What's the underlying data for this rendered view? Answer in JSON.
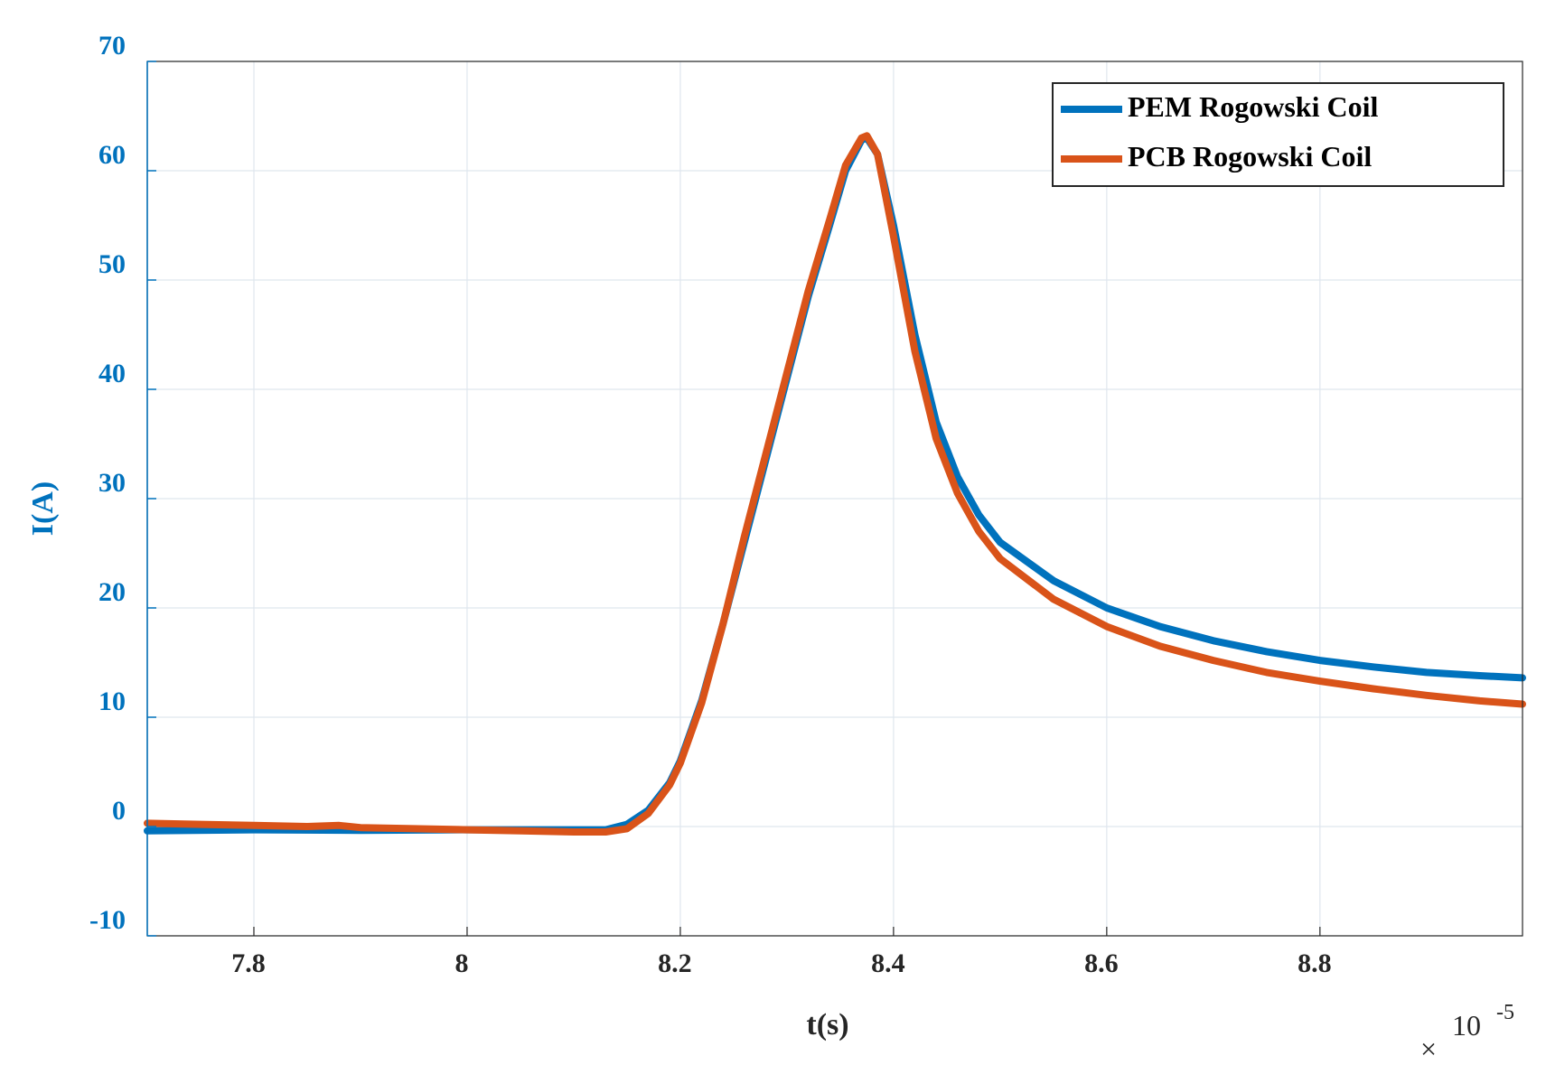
{
  "chart_data": {
    "type": "line",
    "xlabel": "t(s)",
    "ylabel": "I(A)",
    "x_exponent_base": "10",
    "x_exponent_power": "-5",
    "x_exponent_symbol": "×",
    "xlim": [
      7.7,
      8.99
    ],
    "ylim": [
      -10,
      70
    ],
    "x_ticks": [
      7.8,
      8.0,
      8.2,
      8.4,
      8.6,
      8.8
    ],
    "x_tick_labels": [
      "7.8",
      "8",
      "8.2",
      "8.4",
      "8.6",
      "8.8"
    ],
    "y_ticks": [
      -10,
      0,
      10,
      20,
      30,
      40,
      50,
      60,
      70
    ],
    "y_tick_labels": [
      "-10",
      "0",
      "10",
      "20",
      "30",
      "40",
      "50",
      "60",
      "70"
    ],
    "grid": true,
    "legend_position": "top-right",
    "series": [
      {
        "name": "PEM Rogowski Coil",
        "color": "#0072BD",
        "points": [
          [
            7.7,
            -0.4
          ],
          [
            7.8,
            -0.3
          ],
          [
            7.9,
            -0.35
          ],
          [
            8.0,
            -0.3
          ],
          [
            8.1,
            -0.3
          ],
          [
            8.13,
            -0.3
          ],
          [
            8.15,
            0.2
          ],
          [
            8.17,
            1.5
          ],
          [
            8.19,
            4.0
          ],
          [
            8.2,
            6.0
          ],
          [
            8.22,
            11.5
          ],
          [
            8.24,
            18.5
          ],
          [
            8.26,
            26.0
          ],
          [
            8.28,
            33.5
          ],
          [
            8.3,
            41.0
          ],
          [
            8.32,
            48.5
          ],
          [
            8.34,
            55.0
          ],
          [
            8.355,
            60.0
          ],
          [
            8.37,
            62.8
          ],
          [
            8.375,
            63.0
          ],
          [
            8.385,
            61.5
          ],
          [
            8.4,
            55.0
          ],
          [
            8.42,
            45.0
          ],
          [
            8.44,
            37.0
          ],
          [
            8.46,
            32.0
          ],
          [
            8.48,
            28.5
          ],
          [
            8.5,
            26.0
          ],
          [
            8.55,
            22.5
          ],
          [
            8.6,
            20.0
          ],
          [
            8.65,
            18.3
          ],
          [
            8.7,
            17.0
          ],
          [
            8.75,
            16.0
          ],
          [
            8.8,
            15.2
          ],
          [
            8.85,
            14.6
          ],
          [
            8.9,
            14.1
          ],
          [
            8.95,
            13.8
          ],
          [
            8.99,
            13.6
          ]
        ]
      },
      {
        "name": "PCB Rogowski Coil",
        "color": "#D95319",
        "points": [
          [
            7.7,
            0.3
          ],
          [
            7.75,
            0.2
          ],
          [
            7.8,
            0.1
          ],
          [
            7.85,
            0.0
          ],
          [
            7.88,
            0.1
          ],
          [
            7.9,
            -0.1
          ],
          [
            7.95,
            -0.2
          ],
          [
            8.0,
            -0.3
          ],
          [
            8.05,
            -0.4
          ],
          [
            8.1,
            -0.5
          ],
          [
            8.13,
            -0.5
          ],
          [
            8.15,
            -0.2
          ],
          [
            8.17,
            1.2
          ],
          [
            8.19,
            3.8
          ],
          [
            8.2,
            5.8
          ],
          [
            8.22,
            11.3
          ],
          [
            8.24,
            18.5
          ],
          [
            8.26,
            26.5
          ],
          [
            8.28,
            34.0
          ],
          [
            8.3,
            41.5
          ],
          [
            8.32,
            49.0
          ],
          [
            8.34,
            55.5
          ],
          [
            8.355,
            60.5
          ],
          [
            8.37,
            63.0
          ],
          [
            8.375,
            63.2
          ],
          [
            8.385,
            61.5
          ],
          [
            8.4,
            54.0
          ],
          [
            8.42,
            43.5
          ],
          [
            8.44,
            35.5
          ],
          [
            8.46,
            30.5
          ],
          [
            8.48,
            27.0
          ],
          [
            8.5,
            24.5
          ],
          [
            8.55,
            20.8
          ],
          [
            8.6,
            18.3
          ],
          [
            8.65,
            16.5
          ],
          [
            8.7,
            15.2
          ],
          [
            8.75,
            14.1
          ],
          [
            8.8,
            13.3
          ],
          [
            8.85,
            12.6
          ],
          [
            8.9,
            12.0
          ],
          [
            8.95,
            11.5
          ],
          [
            8.99,
            11.2
          ]
        ]
      }
    ]
  }
}
